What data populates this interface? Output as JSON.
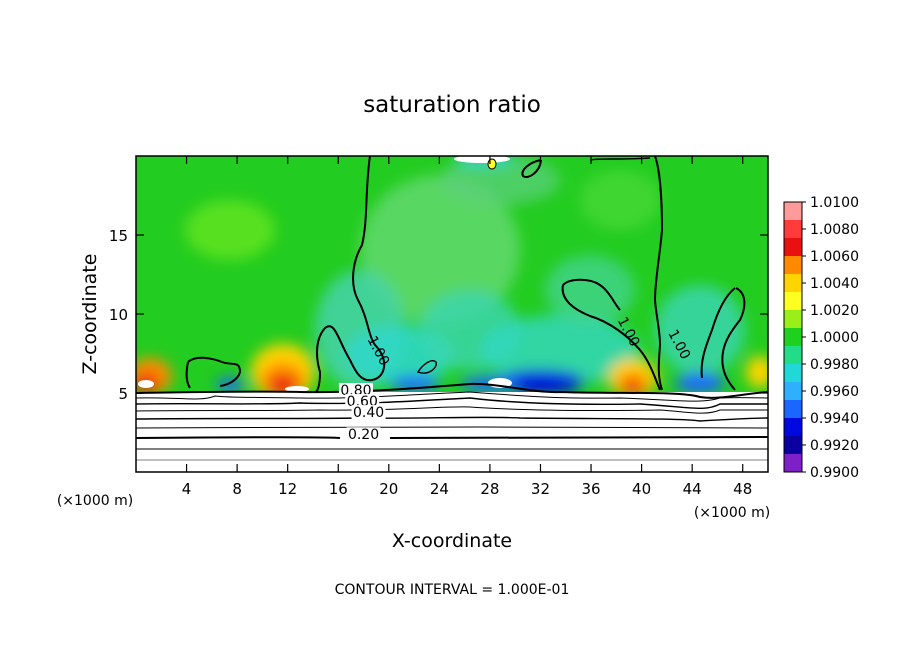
{
  "chart_data": {
    "type": "heatmap",
    "title": "saturation ratio",
    "xlabel": "X-coordinate",
    "ylabel": "Z-coordinate",
    "x_unit": "(×1000 m)",
    "y_unit": "(×1000 m)",
    "xlim": [
      0,
      50
    ],
    "ylim": [
      0,
      20
    ],
    "x_ticks": [
      4,
      8,
      12,
      16,
      20,
      24,
      28,
      32,
      36,
      40,
      44,
      48
    ],
    "y_ticks": [
      5,
      10,
      15
    ],
    "footer": "CONTOUR INTERVAL = 1.000E-01",
    "colorbar": {
      "values": [
        "1.0100",
        "1.0080",
        "1.0060",
        "1.0040",
        "1.0020",
        "1.0000",
        "0.9980",
        "0.9960",
        "0.9940",
        "0.9920",
        "0.9900"
      ],
      "colors": [
        "#ff9a9a",
        "#ff3b3b",
        "#e81010",
        "#ff8a00",
        "#ffd400",
        "#ffff20",
        "#9aef18",
        "#1fd11f",
        "#22dd88",
        "#20d8d8",
        "#2eb0ff",
        "#1a66ff",
        "#0008e0",
        "#0a00a0",
        "#7e20c8"
      ]
    },
    "contour_labels": [
      {
        "text": "0.80",
        "x": 17.4,
        "z": 5.0
      },
      {
        "text": "0.60",
        "x": 17.9,
        "z": 4.3
      },
      {
        "text": "0.40",
        "x": 18.4,
        "z": 3.6
      },
      {
        "text": "0.20",
        "x": 18.0,
        "z": 2.2
      },
      {
        "text": "1.00",
        "x": 19.0,
        "z": 7.6
      },
      {
        "text": "1.00",
        "x": 38.8,
        "z": 8.8
      },
      {
        "text": "1.00",
        "x": 42.8,
        "z": 8.0
      }
    ]
  }
}
